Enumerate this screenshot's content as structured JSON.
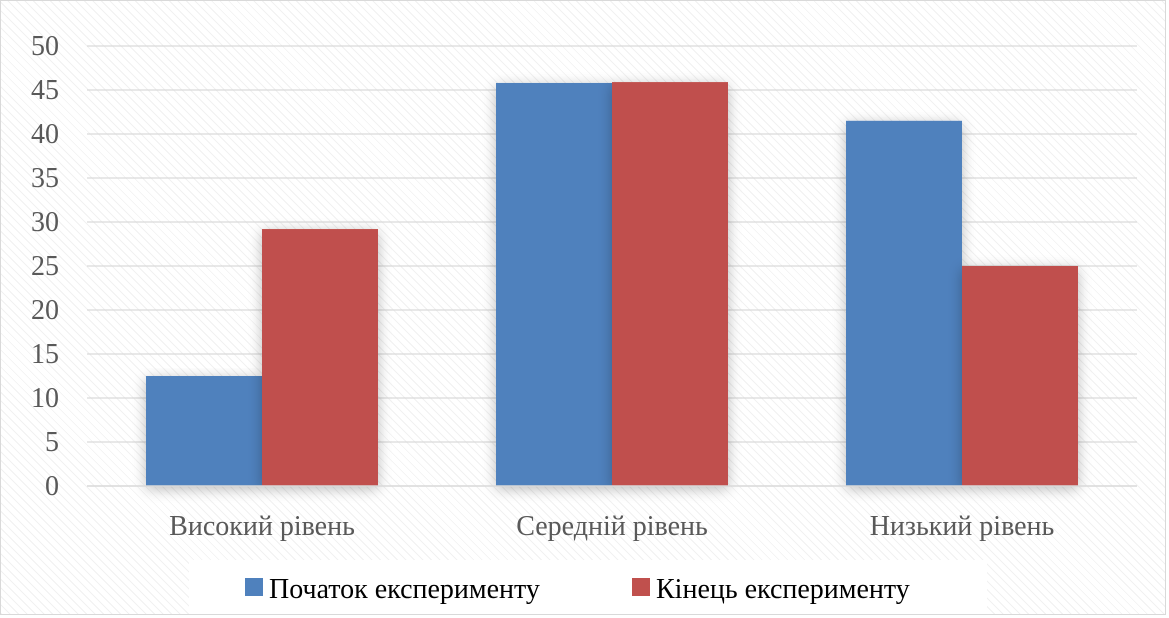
{
  "chart_data": {
    "type": "bar",
    "categories": [
      "Високий рівень",
      "Середній рівень",
      "Низький рівень"
    ],
    "series": [
      {
        "name": "Початок експерименту",
        "color": "#4f81bd",
        "values": [
          12.5,
          45.8,
          41.5
        ]
      },
      {
        "name": "Кінець експерименту",
        "color": "#c0504d",
        "values": [
          29.2,
          45.9,
          25.0
        ]
      }
    ],
    "ylim": [
      0,
      50
    ],
    "yticks": [
      0,
      5,
      10,
      15,
      20,
      25,
      30,
      35,
      40,
      45,
      50
    ],
    "grid": true,
    "legend_position": "bottom",
    "title": "",
    "xlabel": "",
    "ylabel": ""
  }
}
